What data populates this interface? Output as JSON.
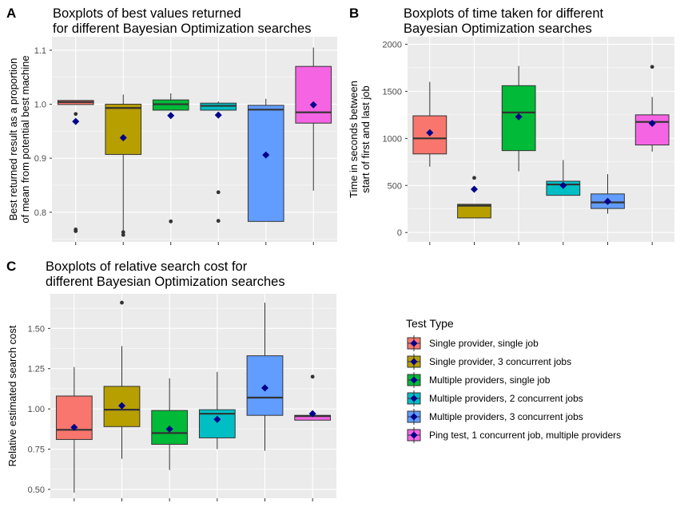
{
  "chart_data": [
    {
      "type": "boxplot",
      "panel": "A",
      "title_lines": [
        "Boxplots of best values returned",
        "for different Bayesian Optimization searches"
      ],
      "ylabel_lines": [
        "Best returned result as a proportion",
        "of mean from potential best machine"
      ],
      "xlabel": "",
      "ylim": [
        0.745,
        1.125
      ],
      "y_ticks": [
        0.8,
        0.9,
        1.0,
        1.1
      ],
      "y_tick_labels": [
        "0.8",
        "0.9",
        "1.0",
        "1.1"
      ],
      "grid": true,
      "boxes": [
        {
          "test_type": "Single provider, single job",
          "color": "#F8766D",
          "q1": 0.9995,
          "median": 1.004,
          "q3": 1.007,
          "whisker_low": 0.9995,
          "whisker_high": 1.007,
          "mean": 0.968,
          "outliers": [
            0.982,
            0.768,
            0.765
          ]
        },
        {
          "test_type": "Single provider, 3 concurrent jobs",
          "color": "#B79F00",
          "q1": 0.907,
          "median": 0.993,
          "q3": 1.0,
          "whisker_low": 0.765,
          "whisker_high": 1.018,
          "mean": 0.938,
          "outliers": [
            0.763,
            0.758
          ]
        },
        {
          "test_type": "Multiple providers, single job",
          "color": "#00BA38",
          "q1": 0.989,
          "median": 1.0,
          "q3": 1.008,
          "whisker_low": 0.989,
          "whisker_high": 1.02,
          "mean": 0.979,
          "outliers": [
            0.783
          ]
        },
        {
          "test_type": "Multiple providers, 2 concurrent jobs",
          "color": "#00BFC4",
          "q1": 0.989,
          "median": 0.997,
          "q3": 1.002,
          "whisker_low": 0.989,
          "whisker_high": 1.005,
          "mean": 0.98,
          "outliers": [
            0.837,
            0.784
          ]
        },
        {
          "test_type": "Multiple providers, 3 concurrent jobs",
          "color": "#619CFF",
          "q1": 0.783,
          "median": 0.99,
          "q3": 0.998,
          "whisker_low": 0.783,
          "whisker_high": 1.01,
          "mean": 0.906,
          "outliers": []
        },
        {
          "test_type": "Ping test, 1 concurrent job, multiple providers",
          "color": "#F564E3",
          "q1": 0.965,
          "median": 0.985,
          "q3": 1.07,
          "whisker_low": 0.84,
          "whisker_high": 1.105,
          "mean": 0.999,
          "outliers": []
        }
      ]
    },
    {
      "type": "boxplot",
      "panel": "B",
      "title_lines": [
        "Boxplots of time taken for different",
        "Bayesian Optimization searches"
      ],
      "ylabel_lines": [
        "Time in seconds between",
        "start of first and last job"
      ],
      "xlabel": "",
      "ylim": [
        -100,
        2080
      ],
      "y_ticks": [
        0,
        500,
        1000,
        1500,
        2000
      ],
      "y_tick_labels": [
        "0",
        "500",
        "1000",
        "1500",
        "2000"
      ],
      "grid": true,
      "boxes": [
        {
          "test_type": "Single provider, single job",
          "color": "#F8766D",
          "q1": 835,
          "median": 1000,
          "q3": 1240,
          "whisker_low": 700,
          "whisker_high": 1600,
          "mean": 1060,
          "outliers": []
        },
        {
          "test_type": "Single provider, 3 concurrent jobs",
          "color": "#B79F00",
          "q1": 155,
          "median": 285,
          "q3": 300,
          "whisker_low": 155,
          "whisker_high": 300,
          "mean": 460,
          "outliers": [
            580
          ]
        },
        {
          "test_type": "Multiple providers, single job",
          "color": "#00BA38",
          "q1": 870,
          "median": 1275,
          "q3": 1560,
          "whisker_low": 650,
          "whisker_high": 1770,
          "mean": 1230,
          "outliers": []
        },
        {
          "test_type": "Multiple providers, 2 concurrent jobs",
          "color": "#00BFC4",
          "q1": 395,
          "median": 510,
          "q3": 545,
          "whisker_low": 395,
          "whisker_high": 770,
          "mean": 500,
          "outliers": []
        },
        {
          "test_type": "Multiple providers, 3 concurrent jobs",
          "color": "#619CFF",
          "q1": 255,
          "median": 320,
          "q3": 410,
          "whisker_low": 200,
          "whisker_high": 620,
          "mean": 330,
          "outliers": []
        },
        {
          "test_type": "Ping test, 1 concurrent job, multiple providers",
          "color": "#F564E3",
          "q1": 930,
          "median": 1175,
          "q3": 1250,
          "whisker_low": 860,
          "whisker_high": 1440,
          "mean": 1160,
          "outliers": [
            1760
          ]
        }
      ]
    },
    {
      "type": "boxplot",
      "panel": "C",
      "title_lines": [
        "Boxplots of relative search cost for",
        "different Bayesian Optimization searches"
      ],
      "ylabel_lines": [
        "Relative estimated search cost"
      ],
      "xlabel": "",
      "ylim": [
        0.445,
        1.715
      ],
      "y_ticks": [
        0.5,
        0.75,
        1.0,
        1.25,
        1.5
      ],
      "y_tick_labels": [
        "0.50",
        "0.75",
        "1.00",
        "1.25",
        "1.50"
      ],
      "grid": true,
      "boxes": [
        {
          "test_type": "Single provider, single job",
          "color": "#F8766D",
          "q1": 0.81,
          "median": 0.87,
          "q3": 1.08,
          "whisker_low": 0.48,
          "whisker_high": 1.26,
          "mean": 0.885,
          "outliers": []
        },
        {
          "test_type": "Single provider, 3 concurrent jobs",
          "color": "#B79F00",
          "q1": 0.89,
          "median": 0.995,
          "q3": 1.14,
          "whisker_low": 0.69,
          "whisker_high": 1.39,
          "mean": 1.02,
          "outliers": [
            1.66
          ]
        },
        {
          "test_type": "Multiple providers, single job",
          "color": "#00BA38",
          "q1": 0.78,
          "median": 0.85,
          "q3": 0.99,
          "whisker_low": 0.62,
          "whisker_high": 1.19,
          "mean": 0.875,
          "outliers": []
        },
        {
          "test_type": "Multiple providers, 2 concurrent jobs",
          "color": "#00BFC4",
          "q1": 0.82,
          "median": 0.97,
          "q3": 0.995,
          "whisker_low": 0.75,
          "whisker_high": 1.23,
          "mean": 0.935,
          "outliers": []
        },
        {
          "test_type": "Multiple providers, 3 concurrent jobs",
          "color": "#619CFF",
          "q1": 0.96,
          "median": 1.07,
          "q3": 1.33,
          "whisker_low": 0.74,
          "whisker_high": 1.66,
          "mean": 1.13,
          "outliers": []
        },
        {
          "test_type": "Ping test, 1 concurrent job, multiple providers",
          "color": "#F564E3",
          "q1": 0.93,
          "median": 0.955,
          "q3": 0.96,
          "whisker_low": 0.93,
          "whisker_high": 0.96,
          "mean": 0.97,
          "outliers": [
            1.2
          ]
        }
      ]
    }
  ],
  "legend": {
    "title": "Test Type",
    "items": [
      {
        "label": "Single provider, single job",
        "color": "#F8766D"
      },
      {
        "label": "Single provider, 3 concurrent jobs",
        "color": "#B79F00"
      },
      {
        "label": "Multiple providers, single job",
        "color": "#00BA38"
      },
      {
        "label": "Multiple providers, 2 concurrent jobs",
        "color": "#00BFC4"
      },
      {
        "label": "Multiple providers, 3 concurrent jobs",
        "color": "#619CFF"
      },
      {
        "label": "Ping test, 1 concurrent job, multiple providers",
        "color": "#F564E3"
      }
    ]
  },
  "style": {
    "panel_background": "#EBEBEB",
    "grid_color": "#FFFFFF",
    "mean_marker_color": "#00008B",
    "outlier_color": "#333333",
    "mean_marker": "diamond"
  }
}
